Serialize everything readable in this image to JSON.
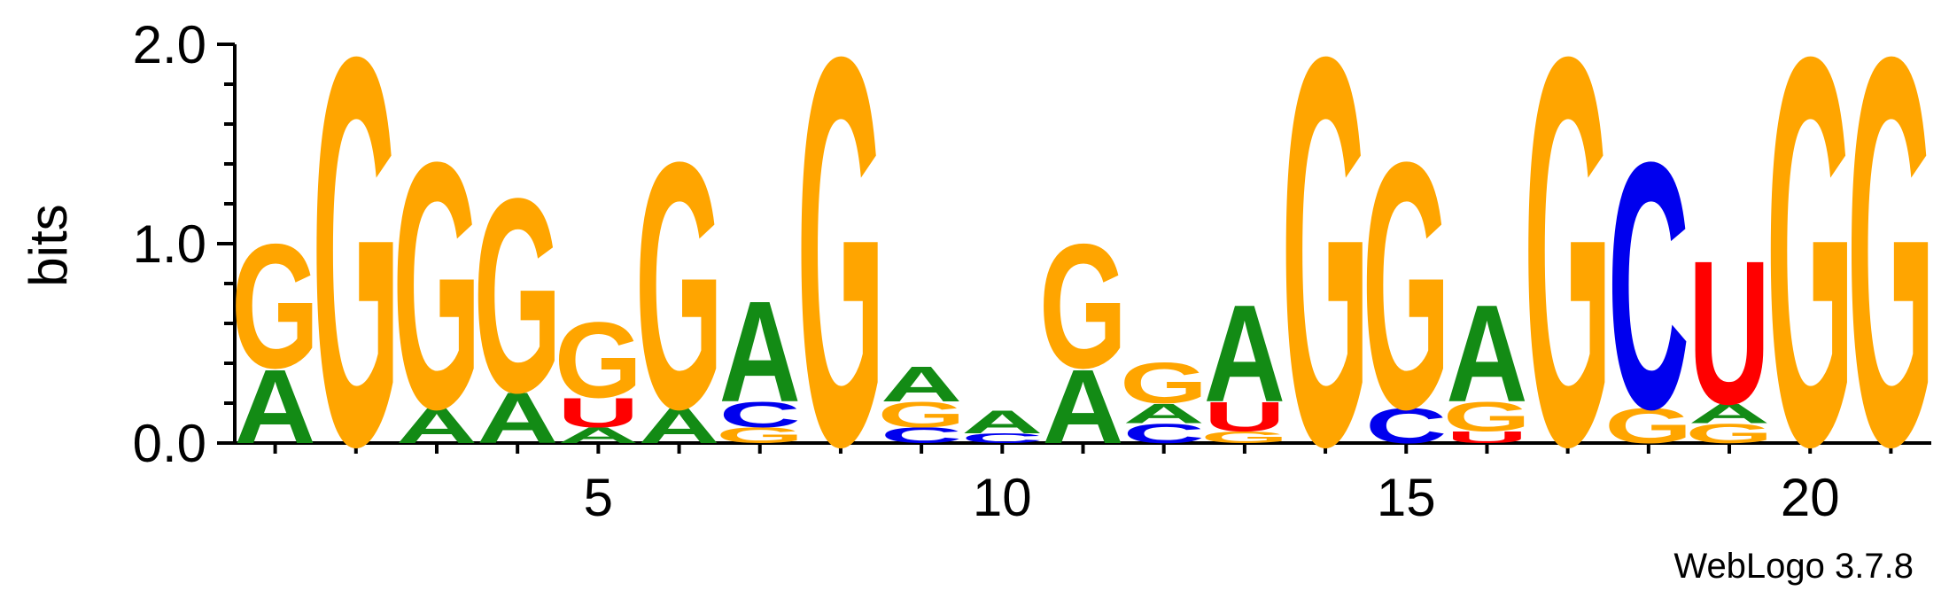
{
  "footer": {
    "label": "WebLogo 3.7.8"
  },
  "colors": {
    "A": "#138b15",
    "C": "#0000ee",
    "G": "#ffa500",
    "U": "#ff0000",
    "axis": "#000000"
  },
  "chart_data": {
    "type": "sequence-logo",
    "ylabel": "bits",
    "ylim": [
      0,
      2
    ],
    "yticks": [
      "0.0",
      "1.0",
      "2.0"
    ],
    "xticks": [
      5,
      10,
      15,
      20
    ],
    "positions": [
      {
        "pos": 1,
        "stack": [
          {
            "l": "A",
            "h": 0.38
          },
          {
            "l": "G",
            "h": 0.64
          }
        ]
      },
      {
        "pos": 2,
        "stack": [
          {
            "l": "G",
            "h": 2.0
          }
        ]
      },
      {
        "pos": 3,
        "stack": [
          {
            "l": "A",
            "h": 0.18
          },
          {
            "l": "G",
            "h": 1.27
          }
        ]
      },
      {
        "pos": 4,
        "stack": [
          {
            "l": "A",
            "h": 0.26
          },
          {
            "l": "G",
            "h": 1.0
          }
        ]
      },
      {
        "pos": 5,
        "stack": [
          {
            "l": "A",
            "h": 0.08
          },
          {
            "l": "U",
            "h": 0.15
          },
          {
            "l": "G",
            "h": 0.39
          }
        ]
      },
      {
        "pos": 6,
        "stack": [
          {
            "l": "A",
            "h": 0.18
          },
          {
            "l": "G",
            "h": 1.27
          }
        ]
      },
      {
        "pos": 7,
        "stack": [
          {
            "l": "G",
            "h": 0.08
          },
          {
            "l": "C",
            "h": 0.13
          },
          {
            "l": "A",
            "h": 0.52
          }
        ]
      },
      {
        "pos": 8,
        "stack": [
          {
            "l": "G",
            "h": 2.0
          }
        ]
      },
      {
        "pos": 9,
        "stack": [
          {
            "l": "C",
            "h": 0.08
          },
          {
            "l": "G",
            "h": 0.13
          },
          {
            "l": "A",
            "h": 0.18
          }
        ]
      },
      {
        "pos": 10,
        "stack": [
          {
            "l": "C",
            "h": 0.05
          },
          {
            "l": "A",
            "h": 0.12
          }
        ]
      },
      {
        "pos": 11,
        "stack": [
          {
            "l": "A",
            "h": 0.38
          },
          {
            "l": "G",
            "h": 0.64
          }
        ]
      },
      {
        "pos": 12,
        "stack": [
          {
            "l": "C",
            "h": 0.1
          },
          {
            "l": "A",
            "h": 0.1
          },
          {
            "l": "G",
            "h": 0.21
          }
        ]
      },
      {
        "pos": 13,
        "stack": [
          {
            "l": "G",
            "h": 0.06
          },
          {
            "l": "U",
            "h": 0.15
          },
          {
            "l": "A",
            "h": 0.5
          }
        ]
      },
      {
        "pos": 14,
        "stack": [
          {
            "l": "G",
            "h": 2.0
          }
        ]
      },
      {
        "pos": 15,
        "stack": [
          {
            "l": "C",
            "h": 0.18
          },
          {
            "l": "G",
            "h": 1.27
          }
        ]
      },
      {
        "pos": 16,
        "stack": [
          {
            "l": "U",
            "h": 0.06
          },
          {
            "l": "G",
            "h": 0.15
          },
          {
            "l": "A",
            "h": 0.5
          }
        ]
      },
      {
        "pos": 17,
        "stack": [
          {
            "l": "G",
            "h": 2.0
          }
        ]
      },
      {
        "pos": 18,
        "stack": [
          {
            "l": "G",
            "h": 0.18
          },
          {
            "l": "C",
            "h": 1.27
          }
        ]
      },
      {
        "pos": 19,
        "stack": [
          {
            "l": "G",
            "h": 0.1
          },
          {
            "l": "A",
            "h": 0.1
          },
          {
            "l": "U",
            "h": 0.74
          }
        ]
      },
      {
        "pos": 20,
        "stack": [
          {
            "l": "G",
            "h": 2.0
          }
        ]
      },
      {
        "pos": 21,
        "stack": [
          {
            "l": "G",
            "h": 2.0
          }
        ]
      }
    ]
  }
}
